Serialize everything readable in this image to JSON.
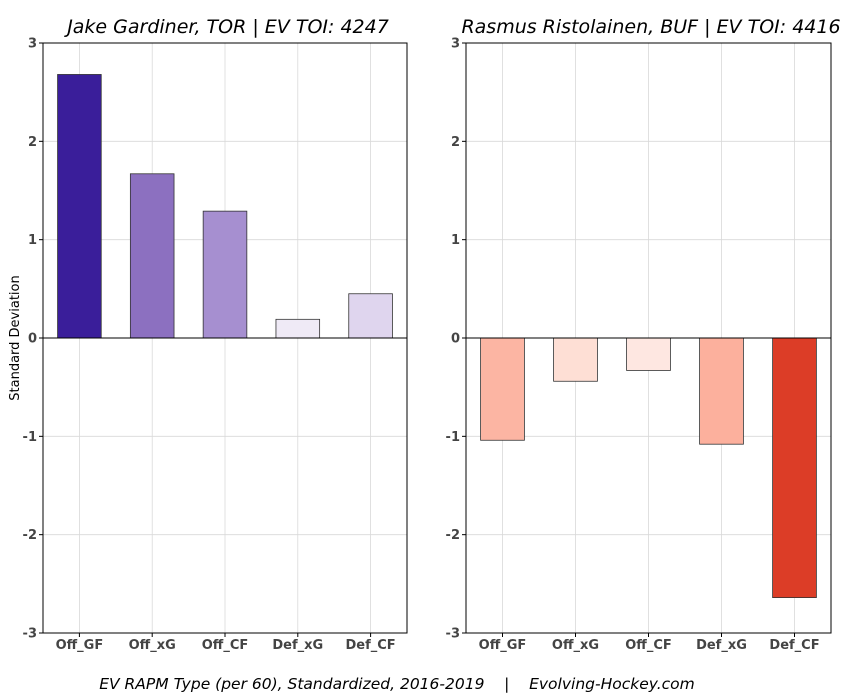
{
  "footer": {
    "caption": "EV RAPM Type (per 60), Standardized, 2016-2019    |    Evolving-Hockey.com"
  },
  "chart_data": [
    {
      "type": "bar",
      "title": "Jake Gardiner, TOR  |  EV TOI: 4247",
      "ylabel": "Standard Deviation",
      "xlabel": "",
      "categories": [
        "Off_GF",
        "Off_xG",
        "Off_CF",
        "Def_xG",
        "Def_CF"
      ],
      "values": [
        2.68,
        1.67,
        1.29,
        0.19,
        0.45
      ],
      "colors": [
        "#3a1e9a",
        "#8c70c0",
        "#a68fd0",
        "#efeaf6",
        "#dfd5ee"
      ],
      "ylim": [
        -3,
        3
      ],
      "yticks": [
        "-3",
        "-2",
        "-1",
        "0",
        "1",
        "2",
        "3"
      ],
      "grid": true
    },
    {
      "type": "bar",
      "title": "Rasmus Ristolainen, BUF  |  EV TOI: 4416",
      "ylabel": "",
      "xlabel": "",
      "categories": [
        "Off_GF",
        "Off_xG",
        "Off_CF",
        "Def_xG",
        "Def_CF"
      ],
      "values": [
        -1.04,
        -0.44,
        -0.33,
        -1.08,
        -2.64
      ],
      "colors": [
        "#fcb5a3",
        "#fedfd5",
        "#fee7e1",
        "#fcb09d",
        "#dc3d27"
      ],
      "ylim": [
        -3,
        3
      ],
      "yticks": [
        "-3",
        "-2",
        "-1",
        "0",
        "1",
        "2",
        "3"
      ],
      "grid": true
    }
  ]
}
